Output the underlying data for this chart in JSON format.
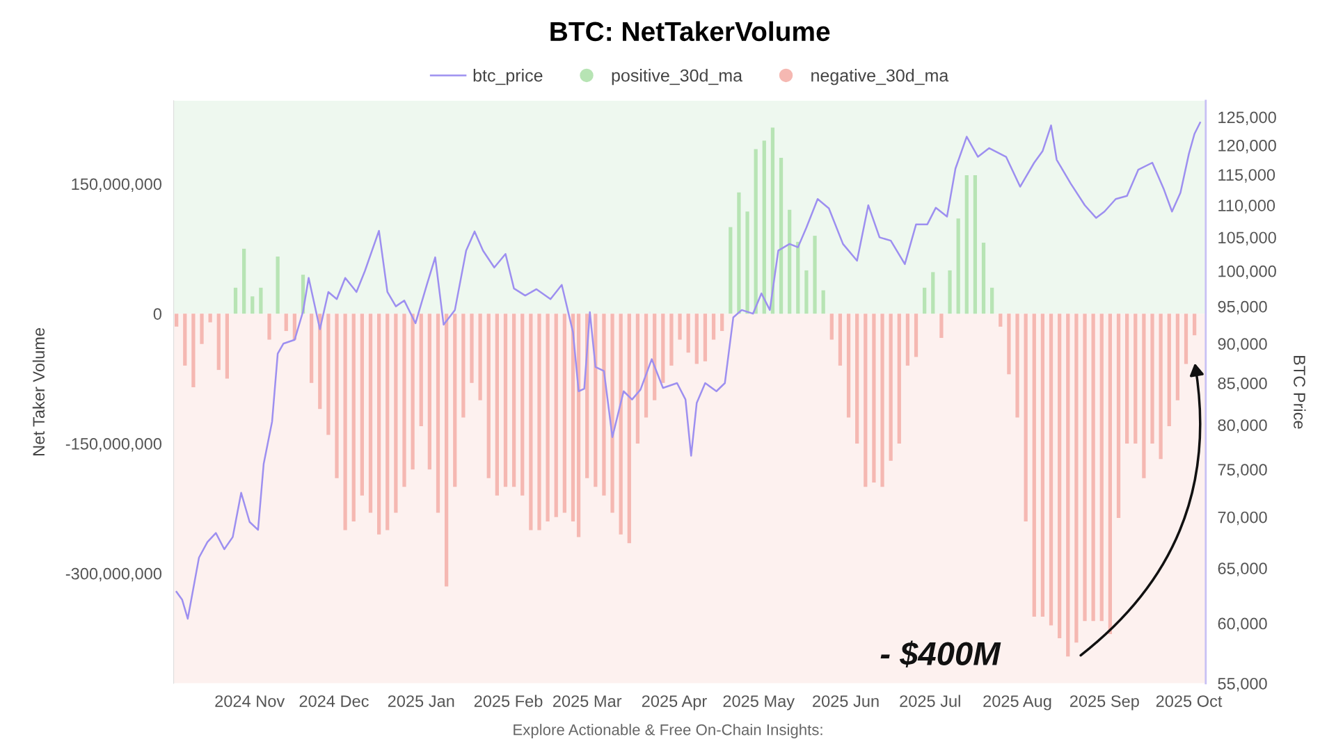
{
  "chart_data": {
    "type": "bar",
    "title": "BTC: NetTakerVolume",
    "ylabel": "Net Taker Volume",
    "y2label": "BTC Price",
    "legend": "top",
    "grid": false,
    "log": "y2",
    "xlim": [
      "2024-10-05",
      "2025-10-07"
    ],
    "xticks": [
      {
        "value": "2024-11-01",
        "label": "2024 Nov"
      },
      {
        "value": "2024-12-01",
        "label": "2024 Dec"
      },
      {
        "value": "2025-01-01",
        "label": "2025 Jan"
      },
      {
        "value": "2025-02-01",
        "label": "2025 Feb"
      },
      {
        "value": "2025-03-01",
        "label": "2025 Mar"
      },
      {
        "value": "2025-04-01",
        "label": "2025 Apr"
      },
      {
        "value": "2025-05-01",
        "label": "2025 May"
      },
      {
        "value": "2025-06-01",
        "label": "2025 Jun"
      },
      {
        "value": "2025-07-01",
        "label": "2025 Jul"
      },
      {
        "value": "2025-08-01",
        "label": "2025 Aug"
      },
      {
        "value": "2025-09-01",
        "label": "2025 Sep"
      },
      {
        "value": "2025-10-01",
        "label": "2025 Oct"
      }
    ],
    "ylim": [
      -427000000,
      246000000
    ],
    "yticks": [
      {
        "value": 150000000,
        "label": "150,000,000"
      },
      0,
      {
        "value": -150000000,
        "label": "-150,000,000"
      },
      {
        "value": -300000000,
        "label": "-300,000,000"
      }
    ],
    "y2lim": [
      55000,
      128000
    ],
    "y2ticks": [
      {
        "value": 55000,
        "label": "55,000"
      },
      {
        "value": 60000,
        "label": "60,000"
      },
      {
        "value": 65000,
        "label": "65,000"
      },
      {
        "value": 70000,
        "label": "70,000"
      },
      {
        "value": 75000,
        "label": "75,000"
      },
      {
        "value": 80000,
        "label": "80,000"
      },
      {
        "value": 85000,
        "label": "85,000"
      },
      {
        "value": 90000,
        "label": "90,000"
      },
      {
        "value": 95000,
        "label": "95,000"
      },
      {
        "value": 100000,
        "label": "100,000"
      },
      {
        "value": 105000,
        "label": "105,000"
      },
      {
        "value": 110000,
        "label": "110,000"
      },
      {
        "value": 115000,
        "label": "115,000"
      },
      {
        "value": 120000,
        "label": "120,000"
      },
      {
        "value": 125000,
        "label": "125,000"
      }
    ],
    "bands": [
      {
        "axis": "y",
        "from": 0,
        "to": 246000000,
        "color": "#eef8ef"
      },
      {
        "axis": "y",
        "from": -427000000,
        "to": 0,
        "color": "#fdf1ef"
      }
    ],
    "series": [
      {
        "name": "btc_price",
        "type": "line",
        "axis": "y2",
        "color": "#9d8ff0",
        "x": [
          "2024-10-06",
          "2024-10-08",
          "2024-10-10",
          "2024-10-14",
          "2024-10-17",
          "2024-10-20",
          "2024-10-23",
          "2024-10-26",
          "2024-10-29",
          "2024-11-01",
          "2024-11-04",
          "2024-11-06",
          "2024-11-09",
          "2024-11-11",
          "2024-11-13",
          "2024-11-17",
          "2024-11-20",
          "2024-11-22",
          "2024-11-26",
          "2024-11-29",
          "2024-12-02",
          "2024-12-05",
          "2024-12-09",
          "2024-12-12",
          "2024-12-17",
          "2024-12-20",
          "2024-12-23",
          "2024-12-26",
          "2024-12-30",
          "2025-01-03",
          "2025-01-06",
          "2025-01-09",
          "2025-01-13",
          "2025-01-17",
          "2025-01-20",
          "2025-01-23",
          "2025-01-27",
          "2025-01-31",
          "2025-02-03",
          "2025-02-07",
          "2025-02-11",
          "2025-02-16",
          "2025-02-20",
          "2025-02-24",
          "2025-02-26",
          "2025-02-28",
          "2025-03-02",
          "2025-03-04",
          "2025-03-07",
          "2025-03-10",
          "2025-03-14",
          "2025-03-17",
          "2025-03-20",
          "2025-03-24",
          "2025-03-28",
          "2025-04-02",
          "2025-04-05",
          "2025-04-07",
          "2025-04-09",
          "2025-04-12",
          "2025-04-16",
          "2025-04-19",
          "2025-04-22",
          "2025-04-25",
          "2025-04-29",
          "2025-05-02",
          "2025-05-05",
          "2025-05-08",
          "2025-05-12",
          "2025-05-15",
          "2025-05-18",
          "2025-05-22",
          "2025-05-26",
          "2025-05-31",
          "2025-06-05",
          "2025-06-09",
          "2025-06-13",
          "2025-06-17",
          "2025-06-22",
          "2025-06-26",
          "2025-06-30",
          "2025-07-03",
          "2025-07-07",
          "2025-07-10",
          "2025-07-14",
          "2025-07-18",
          "2025-07-22",
          "2025-07-28",
          "2025-08-02",
          "2025-08-07",
          "2025-08-10",
          "2025-08-13",
          "2025-08-15",
          "2025-08-20",
          "2025-08-25",
          "2025-08-29",
          "2025-09-01",
          "2025-09-05",
          "2025-09-09",
          "2025-09-13",
          "2025-09-18",
          "2025-09-22",
          "2025-09-25",
          "2025-09-28",
          "2025-10-01",
          "2025-10-03",
          "2025-10-05"
        ],
        "values": [
          62800,
          62100,
          60400,
          66000,
          67500,
          68400,
          66800,
          68000,
          72500,
          69500,
          68700,
          75600,
          80400,
          88700,
          90000,
          90500,
          94300,
          99000,
          91900,
          97000,
          96000,
          99000,
          97000,
          100000,
          106000,
          97000,
          95000,
          95800,
          92700,
          98000,
          102000,
          92500,
          94500,
          103000,
          105900,
          103000,
          100500,
          102500,
          97500,
          96500,
          97400,
          96000,
          98000,
          91500,
          84000,
          84300,
          94200,
          87000,
          86500,
          78600,
          84000,
          83000,
          84200,
          88000,
          84400,
          85000,
          83000,
          76500,
          82600,
          85000,
          84000,
          85000,
          93500,
          94500,
          94000,
          96800,
          94500,
          103000,
          104000,
          103500,
          106500,
          111000,
          109500,
          104000,
          101500,
          110000,
          105000,
          104500,
          101000,
          107000,
          107000,
          109600,
          108200,
          116000,
          121500,
          118000,
          119500,
          118000,
          113000,
          117000,
          119000,
          123500,
          117500,
          113500,
          110000,
          108000,
          109000,
          111000,
          111500,
          115800,
          117000,
          112700,
          109000,
          112000,
          118500,
          122000,
          124000
        ]
      },
      {
        "name": "positive_30d_ma",
        "color": "#b7e4b4",
        "x": [
          "2024-10-27",
          "2024-10-30",
          "2024-11-02",
          "2024-11-05",
          "2024-11-11",
          "2024-11-20",
          "2025-04-21",
          "2025-04-24",
          "2025-04-27",
          "2025-04-30",
          "2025-05-03",
          "2025-05-06",
          "2025-05-09",
          "2025-05-12",
          "2025-05-15",
          "2025-05-18",
          "2025-05-21",
          "2025-05-24",
          "2025-06-29",
          "2025-07-02",
          "2025-07-08",
          "2025-07-11",
          "2025-07-14",
          "2025-07-17",
          "2025-07-20",
          "2025-07-23"
        ],
        "values": [
          30000000,
          75000000,
          20000000,
          30000000,
          66000000,
          45000000,
          100000000,
          140000000,
          118000000,
          190000000,
          200000000,
          215000000,
          180000000,
          120000000,
          83000000,
          50000000,
          90000000,
          27000000,
          30000000,
          48000000,
          50000000,
          110000000,
          160000000,
          160000000,
          82000000,
          30000000
        ]
      },
      {
        "name": "negative_30d_ma",
        "color": "#f5b8b2",
        "x": [
          "2024-10-06",
          "2024-10-09",
          "2024-10-12",
          "2024-10-15",
          "2024-10-18",
          "2024-10-21",
          "2024-10-24",
          "2024-11-08",
          "2024-11-14",
          "2024-11-17",
          "2024-11-23",
          "2024-11-26",
          "2024-11-29",
          "2024-12-02",
          "2024-12-05",
          "2024-12-08",
          "2024-12-11",
          "2024-12-14",
          "2024-12-17",
          "2024-12-20",
          "2024-12-23",
          "2024-12-26",
          "2024-12-29",
          "2025-01-01",
          "2025-01-04",
          "2025-01-07",
          "2025-01-10",
          "2025-01-13",
          "2025-01-16",
          "2025-01-19",
          "2025-01-22",
          "2025-01-25",
          "2025-01-28",
          "2025-01-31",
          "2025-02-03",
          "2025-02-06",
          "2025-02-09",
          "2025-02-12",
          "2025-02-15",
          "2025-02-18",
          "2025-02-21",
          "2025-02-24",
          "2025-02-26",
          "2025-03-01",
          "2025-03-04",
          "2025-03-07",
          "2025-03-10",
          "2025-03-13",
          "2025-03-16",
          "2025-03-19",
          "2025-03-22",
          "2025-03-25",
          "2025-03-28",
          "2025-03-31",
          "2025-04-03",
          "2025-04-06",
          "2025-04-09",
          "2025-04-12",
          "2025-04-15",
          "2025-04-18",
          "2025-05-27",
          "2025-05-30",
          "2025-06-02",
          "2025-06-05",
          "2025-06-08",
          "2025-06-11",
          "2025-06-14",
          "2025-06-17",
          "2025-06-20",
          "2025-06-23",
          "2025-06-26",
          "2025-07-05",
          "2025-07-26",
          "2025-07-29",
          "2025-08-01",
          "2025-08-04",
          "2025-08-07",
          "2025-08-10",
          "2025-08-13",
          "2025-08-16",
          "2025-08-19",
          "2025-08-22",
          "2025-08-25",
          "2025-08-28",
          "2025-08-31",
          "2025-09-03",
          "2025-09-06",
          "2025-09-09",
          "2025-09-12",
          "2025-09-15",
          "2025-09-18",
          "2025-09-21",
          "2025-09-24",
          "2025-09-27",
          "2025-09-30",
          "2025-10-03"
        ],
        "values": [
          -15000000,
          -60000000,
          -85000000,
          -35000000,
          -10000000,
          -65000000,
          -75000000,
          -30000000,
          -20000000,
          -30000000,
          -80000000,
          -110000000,
          -140000000,
          -190000000,
          -250000000,
          -240000000,
          -210000000,
          -230000000,
          -255000000,
          -250000000,
          -230000000,
          -200000000,
          -180000000,
          -130000000,
          -180000000,
          -230000000,
          -315000000,
          -200000000,
          -120000000,
          -80000000,
          -100000000,
          -190000000,
          -210000000,
          -200000000,
          -200000000,
          -210000000,
          -250000000,
          -250000000,
          -240000000,
          -235000000,
          -230000000,
          -240000000,
          -258000000,
          -190000000,
          -200000000,
          -210000000,
          -230000000,
          -255000000,
          -265000000,
          -150000000,
          -120000000,
          -100000000,
          -80000000,
          -60000000,
          -30000000,
          -45000000,
          -58000000,
          -55000000,
          -30000000,
          -20000000,
          -30000000,
          -60000000,
          -120000000,
          -150000000,
          -200000000,
          -195000000,
          -200000000,
          -170000000,
          -150000000,
          -60000000,
          -50000000,
          -28000000,
          -15000000,
          -70000000,
          -120000000,
          -240000000,
          -350000000,
          -350000000,
          -360000000,
          -375000000,
          -396000000,
          -380000000,
          -355000000,
          -355000000,
          -355000000,
          -370000000,
          -236000000,
          -150000000,
          -150000000,
          -190000000,
          -150000000,
          -168000000,
          -130000000,
          -100000000,
          -58000000,
          -25000000
        ]
      }
    ],
    "annotations": [
      {
        "text": "- $400M",
        "x": "2025-08-19",
        "y": -396000000
      },
      "Explore Actionable & Free On-Chain Insights:"
    ]
  }
}
